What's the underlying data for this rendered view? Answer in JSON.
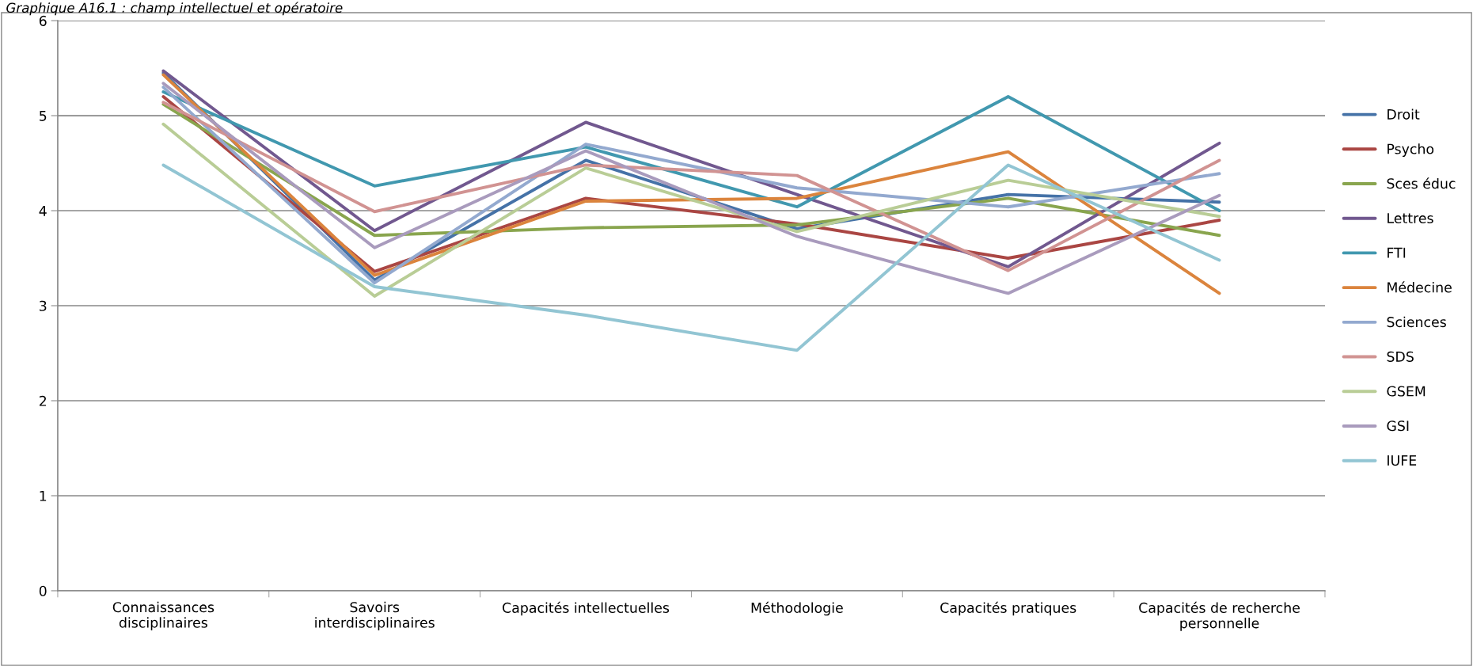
{
  "chart_data": {
    "type": "line",
    "title": "Graphique A16.1 : champ intellectuel et opératoire",
    "categories": [
      "Connaissances\ndisciplinaires",
      "Savoirs\ninterdisciplinaires",
      "Capacités intellectuelles",
      "Méthodologie",
      "Capacités pratiques",
      "Capacités de recherche\npersonnelle"
    ],
    "series": [
      {
        "name": "Droit",
        "color": "#4572a7",
        "values": [
          5.45,
          3.27,
          4.53,
          3.81,
          4.17,
          4.09
        ]
      },
      {
        "name": "Psycho",
        "color": "#aa4643",
        "values": [
          5.2,
          3.36,
          4.13,
          3.86,
          3.5,
          3.9
        ]
      },
      {
        "name": "Sces éduc",
        "color": "#89a54e",
        "values": [
          5.12,
          3.74,
          3.82,
          3.85,
          4.13,
          3.74
        ]
      },
      {
        "name": "Lettres",
        "color": "#71588f",
        "values": [
          5.47,
          3.79,
          4.93,
          4.17,
          3.41,
          4.71
        ]
      },
      {
        "name": "FTI",
        "color": "#4198af",
        "values": [
          5.25,
          4.26,
          4.67,
          4.04,
          5.2,
          4.0
        ]
      },
      {
        "name": "Médecine",
        "color": "#db843d",
        "values": [
          5.43,
          3.32,
          4.1,
          4.13,
          4.62,
          3.13
        ]
      },
      {
        "name": "Sciences",
        "color": "#93a9cf",
        "values": [
          5.3,
          3.24,
          4.7,
          4.24,
          4.04,
          4.39
        ]
      },
      {
        "name": "SDS",
        "color": "#d19392",
        "values": [
          5.14,
          3.99,
          4.48,
          4.37,
          3.37,
          4.53
        ]
      },
      {
        "name": "GSEM",
        "color": "#b9cd96",
        "values": [
          4.91,
          3.1,
          4.45,
          3.78,
          4.32,
          3.94
        ]
      },
      {
        "name": "GSI",
        "color": "#a99bbd",
        "values": [
          5.34,
          3.61,
          4.63,
          3.73,
          3.13,
          4.16
        ]
      },
      {
        "name": "IUFE",
        "color": "#92c5d3",
        "values": [
          4.48,
          3.2,
          2.9,
          2.53,
          4.48,
          3.48
        ]
      }
    ],
    "ylim": [
      0,
      6
    ],
    "yticks": [
      0,
      1,
      2,
      3,
      4,
      5,
      6
    ],
    "grid": "y",
    "legend": "right",
    "marker": "none",
    "line_style": "solid"
  }
}
